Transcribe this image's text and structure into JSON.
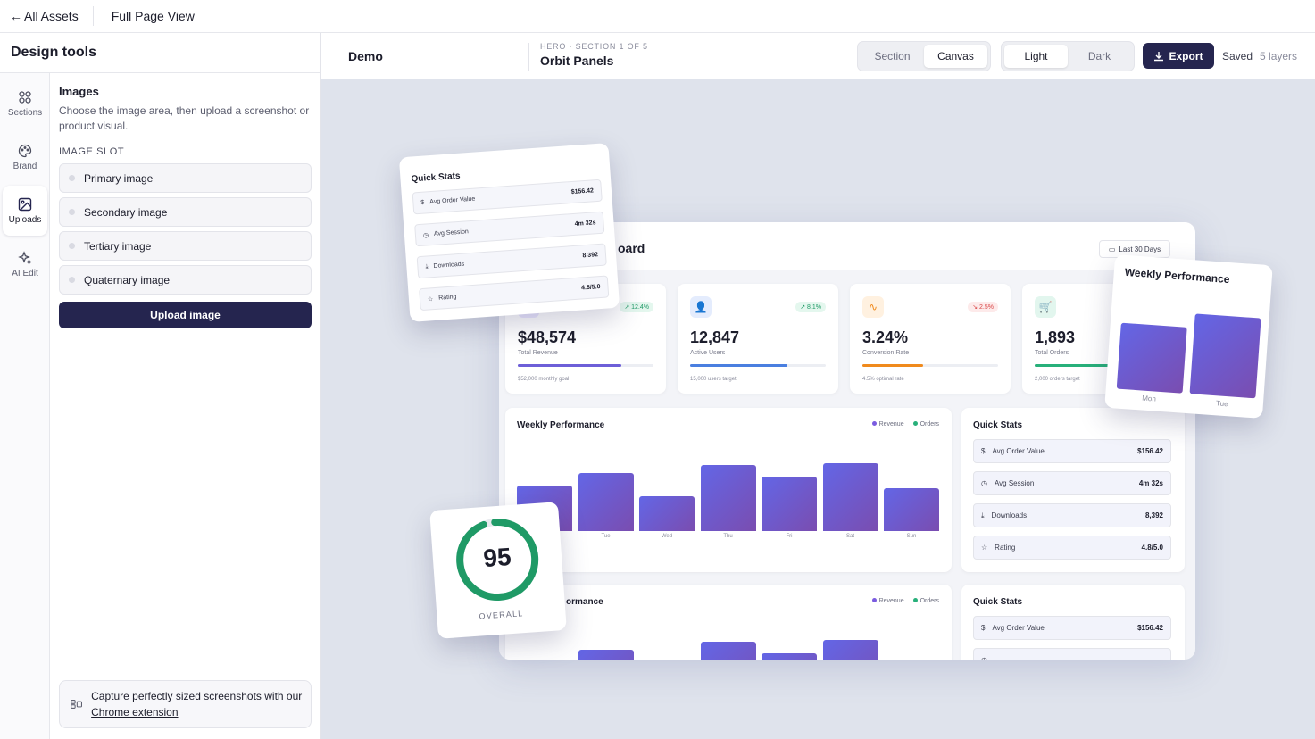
{
  "topbar": {
    "back": "All Assets",
    "view": "Full Page View"
  },
  "sidebar": {
    "title": "Design tools",
    "rail": [
      {
        "label": "Sections",
        "icon": "grid-icon"
      },
      {
        "label": "Brand",
        "icon": "palette-icon"
      },
      {
        "label": "Uploads",
        "icon": "image-icon"
      },
      {
        "label": "AI Edit",
        "icon": "sparkle-icon"
      }
    ],
    "images": {
      "title": "Images",
      "description": "Choose the image area, then upload a screenshot or product visual.",
      "slot_label": "IMAGE SLOT",
      "slots": [
        "Primary image",
        "Secondary image",
        "Tertiary image",
        "Quaternary image"
      ],
      "upload": "Upload image"
    },
    "promo": {
      "text": "Capture perfectly sized screenshots with our",
      "link": "Chrome extension"
    }
  },
  "toolbar": {
    "project": "Demo",
    "crumb_small": "HERO · SECTION 1 OF 5",
    "crumb_title": "Orbit Panels",
    "mode": {
      "options": [
        "Section",
        "Canvas"
      ],
      "selected": "Canvas"
    },
    "theme": {
      "options": [
        "Light",
        "Dark"
      ],
      "selected": "Light"
    },
    "export": "Export",
    "saved": "Saved",
    "layers": "5 layers"
  },
  "dashboard": {
    "title_partial": "oard",
    "range": "Last 30 Days",
    "kpis": [
      {
        "value": "$48,574",
        "label": "Total Revenue",
        "change": "12.4%",
        "goal": "$52,000 monthly goal",
        "progress": 0.76,
        "color": "#6d5fd8"
      },
      {
        "value": "12,847",
        "label": "Active Users",
        "change": "8.1%",
        "goal": "15,000 users target",
        "progress": 0.72,
        "color": "#4a7fe0"
      },
      {
        "value": "3.24%",
        "label": "Conversion Rate",
        "change": "2.5%",
        "goal": "4.5% optimal rate",
        "progress": 0.45,
        "color": "#f08a1c"
      },
      {
        "value": "1,893",
        "label": "Total Orders",
        "change": "",
        "goal": "2,000 orders target",
        "progress": 0.8,
        "color": "#28b07a"
      }
    ],
    "weekly": {
      "title": "Weekly Performance",
      "legend": [
        "Revenue",
        "Orders"
      ],
      "days": [
        "Mon",
        "Tue",
        "Wed",
        "Thu",
        "Fri",
        "Sat",
        "Sun"
      ],
      "values": [
        58,
        74,
        44,
        84,
        69,
        86,
        54
      ]
    },
    "weekly2_title_partial": "ormance",
    "quick": {
      "title": "Quick Stats",
      "rows": [
        {
          "label": "Avg Order Value",
          "value": "$156.42"
        },
        {
          "label": "Avg Session",
          "value": "4m 32s"
        },
        {
          "label": "Downloads",
          "value": "8,392"
        },
        {
          "label": "Rating",
          "value": "4.8/5.0"
        }
      ]
    },
    "score": {
      "value": "95",
      "label": "OVERALL",
      "fraction": 0.95
    },
    "float_weekly": {
      "title": "Weekly Performance",
      "days": [
        "Mon",
        "Tue"
      ]
    }
  }
}
